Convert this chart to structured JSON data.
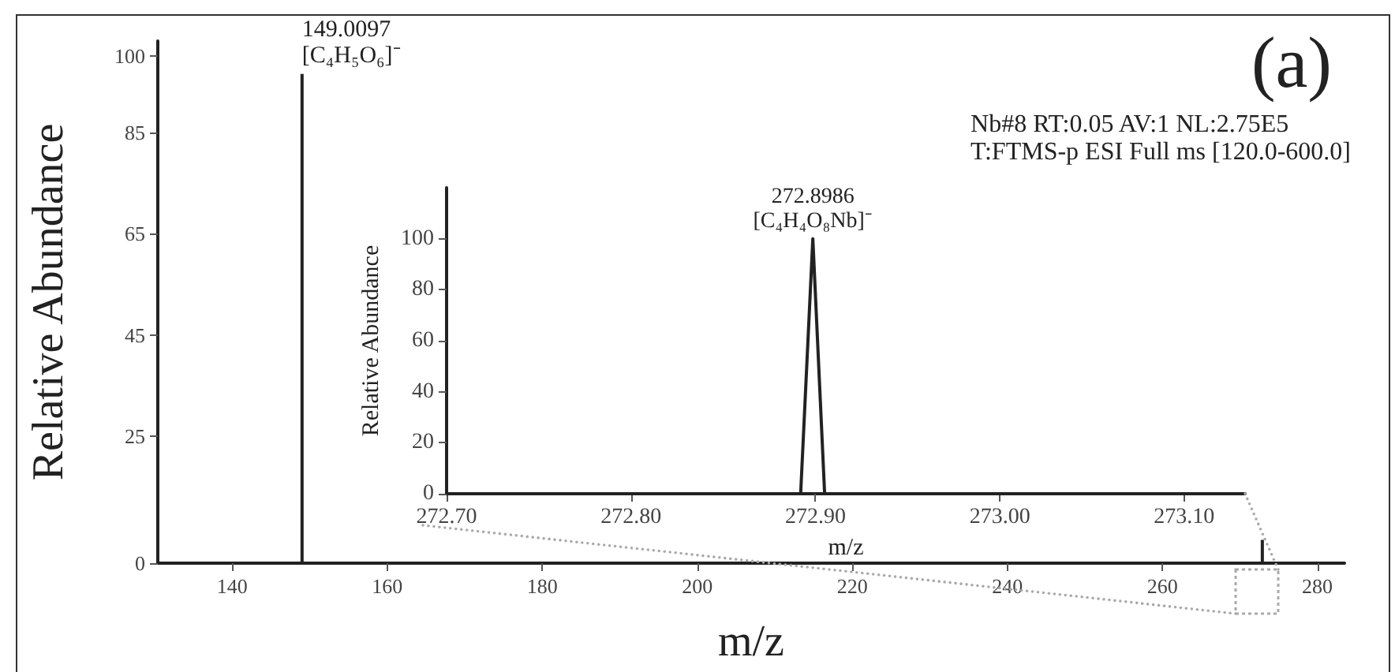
{
  "chart_data": [
    {
      "type": "bar",
      "xlabel": "m/z",
      "ylabel": "Relative Abundance",
      "x": [
        149.0097,
        272.8986
      ],
      "series": [
        {
          "color": "#222222",
          "values": [
            96.5,
            4.6
          ]
        }
      ],
      "xlim": [
        130.4,
        283.5
      ],
      "xticks": [
        140,
        160,
        180,
        200,
        220,
        240,
        260,
        280
      ],
      "ylim": [
        0,
        103
      ],
      "yticks": [
        0,
        25,
        45,
        65,
        85,
        100
      ],
      "grid": false,
      "annotations": [
        {
          "text": "149.0097\n[C₄H₅O₆]⁻",
          "x": 149.0097,
          "y": 96.5
        },
        "(a)",
        "Nb#8 RT:0.05 AV:1 NL:2.75E5\nT:FTMS-p ESI Full ms [120.0-600.0]"
      ]
    },
    {
      "type": "line",
      "xlabel": "m/z",
      "ylabel": "Relative Abundance",
      "marker": "none",
      "x": [
        272.7,
        272.892,
        272.8986,
        272.905,
        273.133
      ],
      "series": [
        {
          "color": "#222222",
          "values": [
            0,
            0,
            100,
            0,
            0
          ]
        }
      ],
      "xlim": [
        272.7,
        273.133
      ],
      "xticks": [
        {
          "value": 272.7,
          "label": "272.70"
        },
        {
          "value": 272.8,
          "label": "272.80"
        },
        {
          "value": 272.9,
          "label": "272.90"
        },
        {
          "value": 273.0,
          "label": "273.00"
        },
        {
          "value": 273.1,
          "label": "273.10"
        }
      ],
      "ylim": [
        0,
        120
      ],
      "yticks": [
        0,
        20,
        40,
        60,
        80,
        100
      ],
      "grid": false,
      "annotations": [
        {
          "text": "272.8986\n[C₄H₄O₈Nb]⁻",
          "x": 272.8986,
          "y": 100
        }
      ]
    }
  ]
}
